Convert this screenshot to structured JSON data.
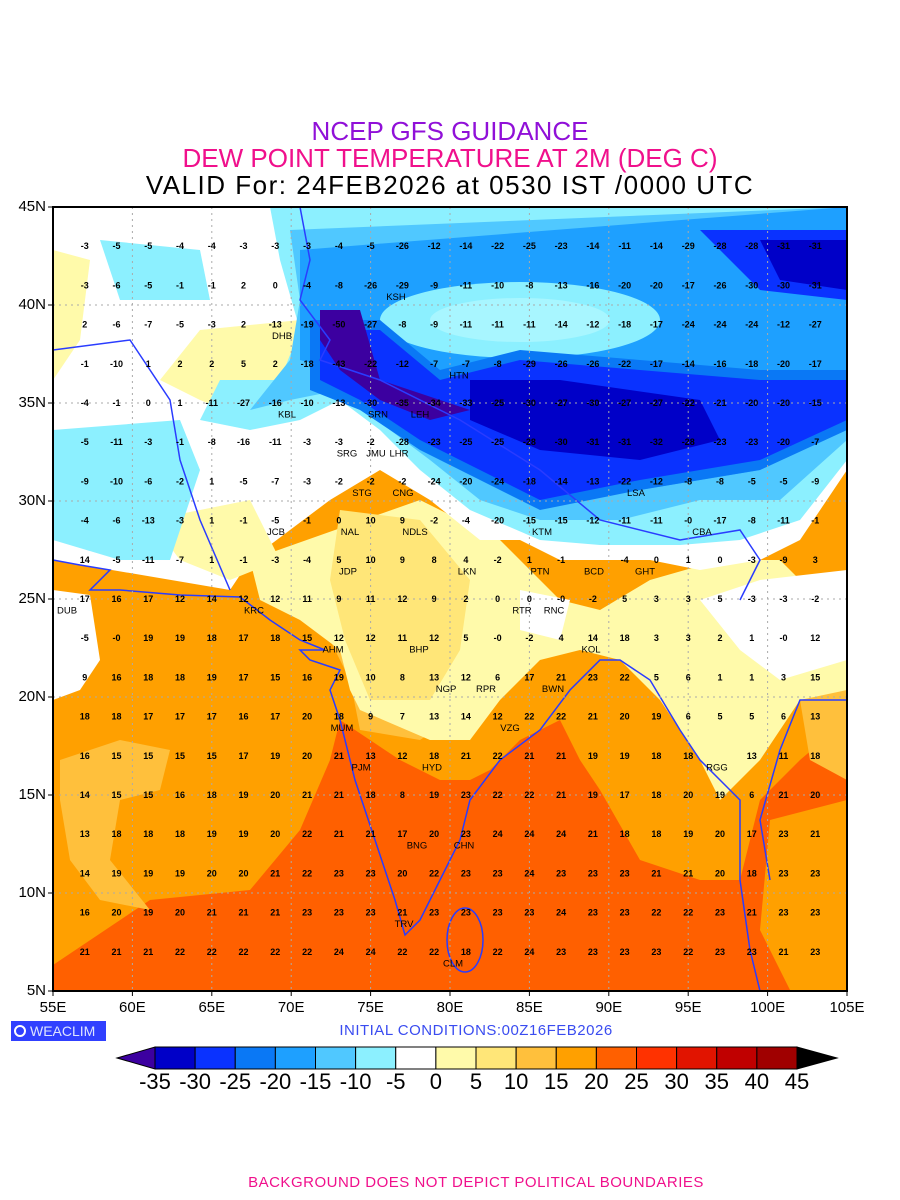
{
  "title": {
    "line1": "NCEP GFS GUIDANCE",
    "line2": "DEW POINT TEMPERATURE AT 2M (DEG C)",
    "line3": "VALID For: 24FEB2026 at 0530 IST /0000 UTC"
  },
  "map": {
    "lat_labels": [
      "45N",
      "40N",
      "35N",
      "30N",
      "25N",
      "20N",
      "15N",
      "10N",
      "5N"
    ],
    "lon_labels": [
      "55E",
      "60E",
      "65E",
      "70E",
      "75E",
      "80E",
      "85E",
      "90E",
      "95E",
      "100E",
      "105E"
    ],
    "coast_color": "#2a3cff",
    "grid": {
      "lons": [
        57,
        59,
        61,
        63,
        65,
        67,
        69,
        71,
        73,
        75,
        77,
        79,
        81,
        83,
        85,
        87,
        89,
        91,
        93,
        95,
        97,
        99,
        101,
        103
      ],
      "rows": [
        {
          "lat": 43,
          "values": [
            -3,
            -5,
            -5,
            -4,
            -4,
            -3,
            -3,
            -3,
            -4,
            -5,
            -26,
            -12,
            -14,
            -22,
            -25,
            -23,
            -14,
            -11,
            -14,
            -29,
            -28,
            -28,
            -31,
            -31
          ]
        },
        {
          "lat": 41,
          "values": [
            -3,
            -6,
            -5,
            -1,
            -1,
            2,
            0,
            -4,
            -8,
            -26,
            -29,
            -9,
            -11,
            -10,
            -8,
            -13,
            -16,
            -20,
            -20,
            -17,
            -26,
            -30,
            -30,
            -31
          ]
        },
        {
          "lat": 39,
          "values": [
            2,
            -6,
            -7,
            -5,
            -3,
            2,
            -13,
            -19,
            -50,
            -27,
            -8,
            -9,
            -11,
            -11,
            -11,
            -14,
            -12,
            -18,
            -17,
            -24,
            -24,
            -24,
            -12,
            -27
          ]
        },
        {
          "lat": 37,
          "values": [
            -1,
            -10,
            1,
            2,
            2,
            5,
            2,
            -18,
            -43,
            -22,
            -12,
            -7,
            -7,
            -8,
            -29,
            -26,
            -26,
            -22,
            -17,
            -14,
            -16,
            -18,
            -20,
            -17
          ]
        },
        {
          "lat": 35,
          "values": [
            -4,
            -1,
            0,
            1,
            -11,
            -27,
            -16,
            -10,
            -13,
            -30,
            -35,
            -34,
            -33,
            -25,
            -30,
            -27,
            -30,
            -27,
            -27,
            -22,
            -21,
            -20,
            -20,
            -15
          ]
        },
        {
          "lat": 33,
          "values": [
            -5,
            -11,
            -3,
            -1,
            -8,
            -16,
            -11,
            -3,
            -3,
            -2,
            -28,
            -23,
            -25,
            -25,
            -28,
            -30,
            -31,
            -31,
            -32,
            -28,
            -23,
            -23,
            -20,
            -7
          ]
        },
        {
          "lat": 31,
          "values": [
            -9,
            -10,
            -6,
            -2,
            1,
            -5,
            -7,
            -3,
            -2,
            -2,
            -2,
            -24,
            -20,
            -24,
            -18,
            -14,
            -13,
            -22,
            -12,
            -8,
            -8,
            -5,
            -5,
            -9
          ]
        },
        {
          "lat": 29,
          "values": [
            -4,
            -6,
            -13,
            -3,
            1,
            -1,
            -5,
            -1,
            0,
            10,
            9,
            -2,
            -4,
            -20,
            -15,
            -15,
            -12,
            -11,
            -11,
            0,
            -17,
            -8,
            -11,
            -1
          ]
        },
        {
          "lat": 27,
          "values": [
            14,
            -5,
            -11,
            -7,
            1,
            -1,
            -3,
            -4,
            5,
            10,
            9,
            8,
            4,
            -2,
            1,
            -1,
            null,
            -4,
            0,
            1,
            0,
            -3,
            -9,
            3
          ]
        },
        {
          "lat": 25,
          "values": [
            17,
            16,
            17,
            12,
            14,
            12,
            12,
            11,
            9,
            11,
            12,
            9,
            2,
            0,
            0,
            0,
            -2,
            5,
            3,
            3,
            5,
            -3,
            -3,
            -2
          ]
        },
        {
          "lat": 23,
          "values": [
            -5,
            0,
            19,
            19,
            18,
            17,
            18,
            15,
            12,
            12,
            11,
            12,
            5,
            0,
            -2,
            4,
            14,
            18,
            3,
            3,
            2,
            1,
            0,
            12
          ]
        },
        {
          "lat": 21,
          "values": [
            9,
            16,
            18,
            18,
            19,
            17,
            15,
            16,
            19,
            10,
            8,
            13,
            12,
            6,
            17,
            21,
            23,
            22,
            5,
            6,
            1,
            1,
            3,
            15
          ]
        },
        {
          "lat": 19,
          "values": [
            18,
            18,
            17,
            17,
            17,
            16,
            17,
            20,
            18,
            9,
            7,
            13,
            14,
            12,
            22,
            22,
            21,
            20,
            19,
            6,
            5,
            5,
            6,
            13
          ]
        },
        {
          "lat": 17,
          "values": [
            16,
            15,
            15,
            15,
            15,
            17,
            19,
            20,
            21,
            13,
            12,
            18,
            21,
            22,
            21,
            21,
            19,
            19,
            18,
            18,
            null,
            13,
            11,
            18
          ]
        },
        {
          "lat": 15,
          "values": [
            14,
            15,
            15,
            16,
            18,
            19,
            20,
            21,
            21,
            18,
            8,
            19,
            23,
            22,
            22,
            21,
            19,
            17,
            18,
            20,
            19,
            6,
            21,
            20
          ]
        },
        {
          "lat": 13,
          "values": [
            13,
            18,
            18,
            18,
            19,
            19,
            20,
            22,
            21,
            21,
            17,
            20,
            23,
            24,
            24,
            24,
            21,
            18,
            18,
            19,
            20,
            17,
            23,
            21
          ]
        },
        {
          "lat": 11,
          "values": [
            14,
            19,
            19,
            19,
            20,
            20,
            21,
            22,
            23,
            23,
            20,
            22,
            23,
            23,
            24,
            23,
            23,
            23,
            21,
            21,
            20,
            18,
            23,
            23
          ]
        },
        {
          "lat": 9,
          "values": [
            16,
            20,
            19,
            20,
            21,
            21,
            21,
            23,
            23,
            23,
            21,
            23,
            23,
            23,
            23,
            24,
            23,
            23,
            22,
            22,
            23,
            21,
            23,
            23
          ]
        },
        {
          "lat": 7,
          "values": [
            21,
            21,
            21,
            22,
            22,
            22,
            22,
            22,
            24,
            24,
            22,
            22,
            18,
            22,
            24,
            23,
            23,
            23,
            23,
            22,
            23,
            23,
            21,
            23
          ]
        }
      ]
    },
    "cities": [
      "KSH",
      "DHB",
      "HTN",
      "KBL",
      "SRN",
      "LEH",
      "JMU",
      "SRG",
      "LHR",
      "CNG",
      "STG",
      "LSA",
      "JCB",
      "NAL",
      "NDLS",
      "KTM",
      "BCD",
      "CBA",
      "GHT",
      "LKN",
      "JDP",
      "PTN",
      "DUB",
      "KRC",
      "RTR",
      "BHP",
      "AHM",
      "RNC",
      "KOL",
      "NGP",
      "RPR",
      "BWN",
      "MUM",
      "HYD",
      "VZG",
      "RGG",
      "PJM",
      "CHN",
      "BNG",
      "TRV",
      "CLM"
    ]
  },
  "logo": "WEACLIM",
  "initial_conditions": "INITIAL CONDITIONS:00Z16FEB2026",
  "legend": {
    "labels": [
      "-35",
      "-30",
      "-25",
      "-20",
      "-15",
      "-10",
      "-5",
      "0",
      "5",
      "10",
      "15",
      "20",
      "25",
      "30",
      "35",
      "40",
      "45"
    ],
    "below_color": "#3c00a0",
    "above_color": "#000000",
    "colors": [
      "#0000c8",
      "#0a32ff",
      "#0a78f5",
      "#1ea0ff",
      "#50c8ff",
      "#8cf0ff",
      "#ffffff",
      "#fffaaa",
      "#ffe678",
      "#ffc03c",
      "#ffa000",
      "#ff6000",
      "#ff3200",
      "#e11400",
      "#c00000",
      "#a00000"
    ]
  },
  "footer": "BACKGROUND DOES NOT DEPICT POLITICAL BOUNDARIES"
}
